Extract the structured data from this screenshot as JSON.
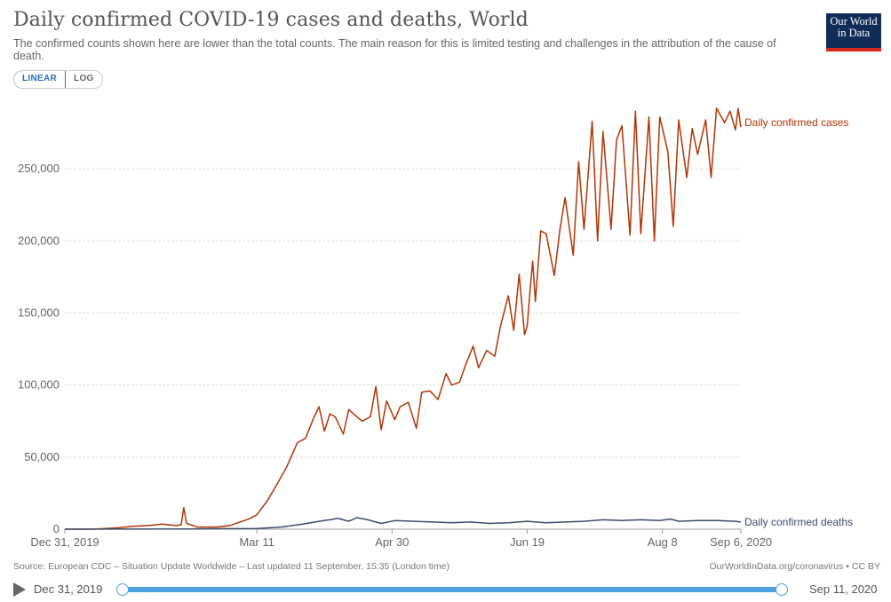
{
  "header": {
    "title": "Daily confirmed COVID-19 cases and deaths, World",
    "subtitle": "The confirmed counts shown here are lower than the total counts. The main reason for this is limited testing and challenges in the attribution of the cause of death.",
    "logo_line1": "Our World",
    "logo_line2": "in Data"
  },
  "scale_toggle": {
    "linear": "LINEAR",
    "log": "LOG",
    "selected": "LINEAR"
  },
  "footer": {
    "source": "Source: European CDC – Situation Update Worldwide – Last updated 11 September, 15:35 (London time)",
    "link": "OurWorldInData.org/coronavirus • CC BY"
  },
  "timeline": {
    "start": "Dec 31, 2019",
    "end": "Sep 11, 2020"
  },
  "colors": {
    "cases": "#b13507",
    "deaths": "#3d4c6b",
    "grid": "#dddddd",
    "accent": "#4ea1e0"
  },
  "chart_data": {
    "type": "line",
    "title": "Daily confirmed COVID-19 cases and deaths, World",
    "ylim": [
      0,
      300000
    ],
    "yticks": [
      0,
      50000,
      100000,
      150000,
      200000,
      250000
    ],
    "ytick_labels": [
      "0",
      "50,000",
      "100,000",
      "150,000",
      "200,000",
      "250,000"
    ],
    "xlim": [
      "2019-12-31",
      "2020-09-06"
    ],
    "xticks": [
      "2019-12-31",
      "2020-03-11",
      "2020-04-30",
      "2020-06-19",
      "2020-08-08",
      "2020-09-06"
    ],
    "xtick_labels": [
      "Dec 31, 2019",
      "Mar 11",
      "Apr 30",
      "Jun 19",
      "Aug 8",
      "Sep 6, 2020"
    ],
    "grid": true,
    "legend": "line-end labels",
    "series": [
      {
        "name": "Daily confirmed cases",
        "x": [
          "2019-12-31",
          "2020-01-10",
          "2020-01-20",
          "2020-01-25",
          "2020-01-31",
          "2020-02-05",
          "2020-02-10",
          "2020-02-12",
          "2020-02-13",
          "2020-02-14",
          "2020-02-18",
          "2020-02-25",
          "2020-03-01",
          "2020-03-08",
          "2020-03-11",
          "2020-03-15",
          "2020-03-19",
          "2020-03-22",
          "2020-03-26",
          "2020-03-29",
          "2020-04-01",
          "2020-04-03",
          "2020-04-05",
          "2020-04-07",
          "2020-04-09",
          "2020-04-12",
          "2020-04-14",
          "2020-04-17",
          "2020-04-19",
          "2020-04-22",
          "2020-04-24",
          "2020-04-26",
          "2020-04-28",
          "2020-05-01",
          "2020-05-03",
          "2020-05-06",
          "2020-05-09",
          "2020-05-11",
          "2020-05-14",
          "2020-05-17",
          "2020-05-20",
          "2020-05-22",
          "2020-05-25",
          "2020-05-27",
          "2020-05-30",
          "2020-06-01",
          "2020-06-04",
          "2020-06-07",
          "2020-06-09",
          "2020-06-12",
          "2020-06-14",
          "2020-06-16",
          "2020-06-18",
          "2020-06-19",
          "2020-06-20",
          "2020-06-21",
          "2020-06-22",
          "2020-06-24",
          "2020-06-26",
          "2020-06-29",
          "2020-07-01",
          "2020-07-03",
          "2020-07-06",
          "2020-07-08",
          "2020-07-10",
          "2020-07-13",
          "2020-07-15",
          "2020-07-17",
          "2020-07-20",
          "2020-07-22",
          "2020-07-24",
          "2020-07-27",
          "2020-07-29",
          "2020-07-31",
          "2020-08-03",
          "2020-08-05",
          "2020-08-07",
          "2020-08-10",
          "2020-08-12",
          "2020-08-14",
          "2020-08-17",
          "2020-08-19",
          "2020-08-21",
          "2020-08-24",
          "2020-08-26",
          "2020-08-28",
          "2020-08-31",
          "2020-09-02",
          "2020-09-04",
          "2020-09-05",
          "2020-09-06"
        ],
        "values": [
          0,
          0,
          1000,
          2000,
          2500,
          3500,
          2500,
          3000,
          15000,
          4000,
          1500,
          1500,
          2500,
          7000,
          10000,
          20000,
          33000,
          43000,
          60000,
          63000,
          77000,
          85000,
          68000,
          80000,
          78000,
          66000,
          83000,
          78000,
          75000,
          78000,
          99000,
          69000,
          89000,
          76000,
          85000,
          88000,
          70000,
          95000,
          96000,
          90000,
          108000,
          100000,
          102000,
          113000,
          127000,
          112000,
          124000,
          120000,
          140000,
          162000,
          138000,
          177000,
          135000,
          141000,
          165000,
          186000,
          158000,
          207000,
          205000,
          176000,
          207000,
          230000,
          190000,
          255000,
          208000,
          283000,
          200000,
          276000,
          208000,
          270000,
          280000,
          204000,
          290000,
          205000,
          286000,
          200000,
          286000,
          262000,
          210000,
          284000,
          244000,
          278000,
          260000,
          284000,
          244000,
          292000,
          282000,
          290000,
          277000,
          292000,
          279000
        ]
      },
      {
        "name": "Daily confirmed deaths",
        "x": [
          "2019-12-31",
          "2020-02-15",
          "2020-03-11",
          "2020-03-20",
          "2020-03-28",
          "2020-04-03",
          "2020-04-07",
          "2020-04-10",
          "2020-04-14",
          "2020-04-17",
          "2020-04-21",
          "2020-04-26",
          "2020-05-01",
          "2020-05-08",
          "2020-05-15",
          "2020-05-22",
          "2020-05-29",
          "2020-06-05",
          "2020-06-12",
          "2020-06-19",
          "2020-06-26",
          "2020-07-03",
          "2020-07-10",
          "2020-07-17",
          "2020-07-24",
          "2020-07-31",
          "2020-08-07",
          "2020-08-11",
          "2020-08-14",
          "2020-08-21",
          "2020-08-28",
          "2020-09-04",
          "2020-09-06"
        ],
        "values": [
          0,
          200,
          500,
          1500,
          3500,
          5500,
          6500,
          7500,
          5500,
          8000,
          6500,
          4000,
          6000,
          5500,
          5000,
          4500,
          5000,
          4000,
          4500,
          5500,
          4500,
          5000,
          5500,
          6500,
          6000,
          6500,
          6000,
          7000,
          5500,
          6000,
          6000,
          5500,
          5000
        ]
      }
    ]
  }
}
